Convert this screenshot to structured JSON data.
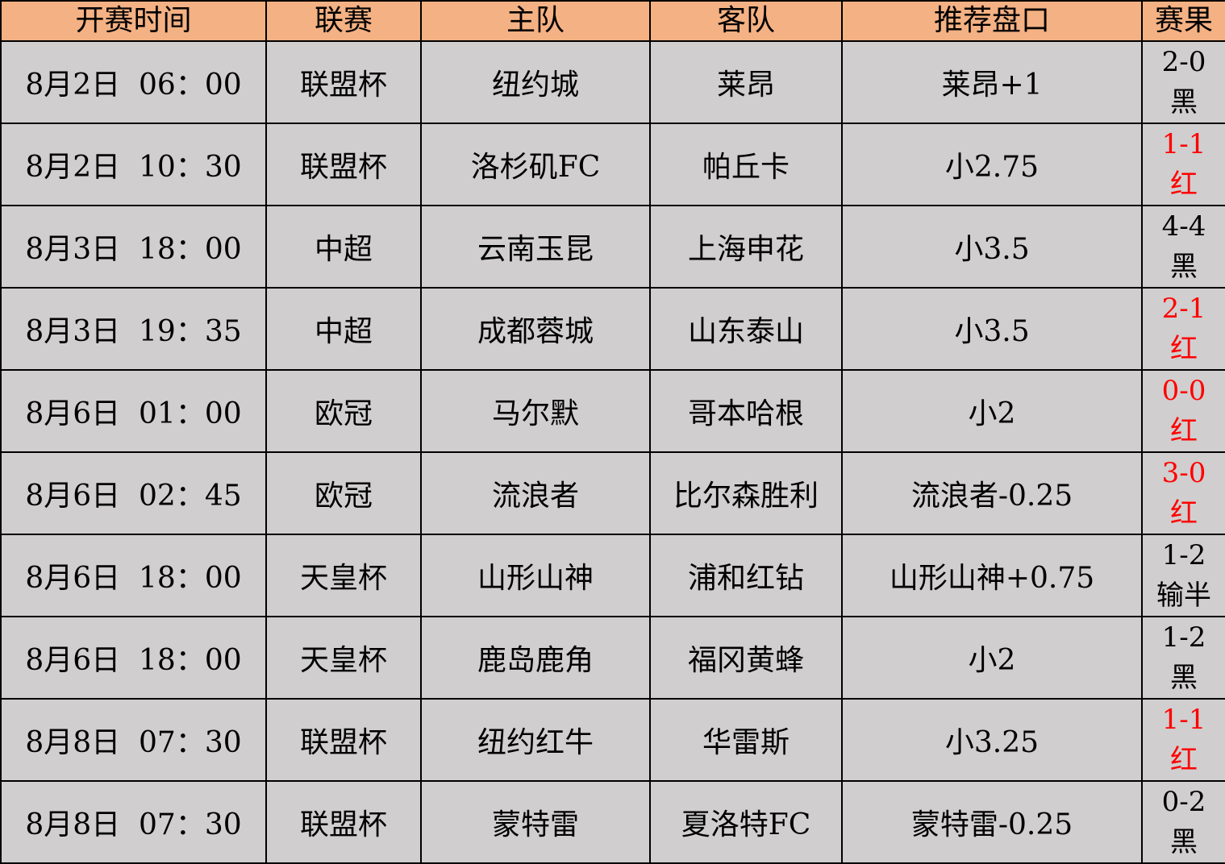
{
  "headers": [
    "开赛时间",
    "联赛",
    "主队",
    "客队",
    "推荐盘口",
    "赛果"
  ],
  "colors": {
    "header_bg": "#F4B183",
    "row_bg": "#D0CECE",
    "red_result": "#FF0000",
    "black_result": "#000000"
  },
  "rows": [
    {
      "time": "8月2日  06：00",
      "league": "联盟杯",
      "home": "纽约城",
      "away": "莱昂",
      "pick": "莱昂+1",
      "score": "2-0",
      "outcome": "黑",
      "color": "black"
    },
    {
      "time": "8月2日  10：30",
      "league": "联盟杯",
      "home": "洛杉矶FC",
      "away": "帕丘卡",
      "pick": "小2.75",
      "score": "1-1",
      "outcome": "红",
      "color": "red"
    },
    {
      "time": "8月3日  18：00",
      "league": "中超",
      "home": "云南玉昆",
      "away": "上海申花",
      "pick": "小3.5",
      "score": "4-4",
      "outcome": "黑",
      "color": "black"
    },
    {
      "time": "8月3日  19：35",
      "league": "中超",
      "home": "成都蓉城",
      "away": "山东泰山",
      "pick": "小3.5",
      "score": "2-1",
      "outcome": "红",
      "color": "red"
    },
    {
      "time": "8月6日  01：00",
      "league": "欧冠",
      "home": "马尔默",
      "away": "哥本哈根",
      "pick": "小2",
      "score": "0-0",
      "outcome": "红",
      "color": "red"
    },
    {
      "time": "8月6日  02：45",
      "league": "欧冠",
      "home": "流浪者",
      "away": "比尔森胜利",
      "pick": "流浪者-0.25",
      "score": "3-0",
      "outcome": "红",
      "color": "red"
    },
    {
      "time": "8月6日  18：00",
      "league": "天皇杯",
      "home": "山形山神",
      "away": "浦和红钻",
      "pick": "山形山神+0.75",
      "score": "1-2",
      "outcome": "输半",
      "color": "black"
    },
    {
      "time": "8月6日  18：00",
      "league": "天皇杯",
      "home": "鹿岛鹿角",
      "away": "福冈黄蜂",
      "pick": "小2",
      "score": "1-2",
      "outcome": "黑",
      "color": "black"
    },
    {
      "time": "8月8日  07：30",
      "league": "联盟杯",
      "home": "纽约红牛",
      "away": "华雷斯",
      "pick": "小3.25",
      "score": "1-1",
      "outcome": "红",
      "color": "red"
    },
    {
      "time": "8月8日  07：30",
      "league": "联盟杯",
      "home": "蒙特雷",
      "away": "夏洛特FC",
      "pick": "蒙特雷-0.25",
      "score": "0-2",
      "outcome": "黑",
      "color": "black"
    }
  ]
}
